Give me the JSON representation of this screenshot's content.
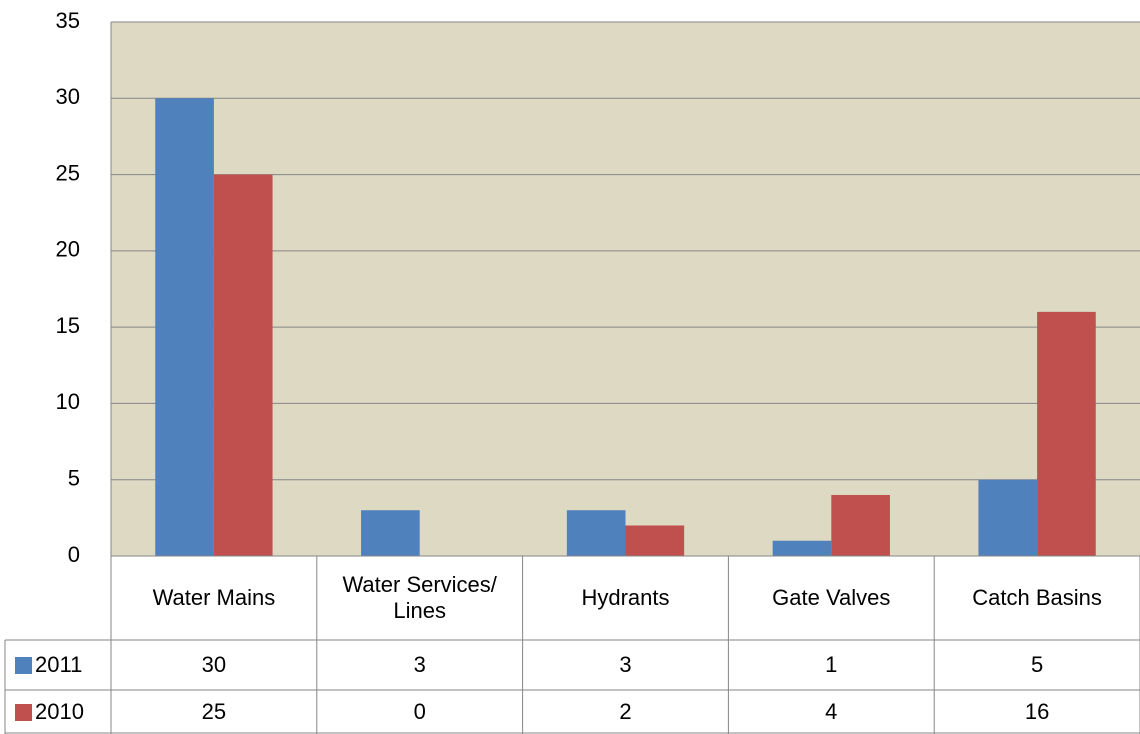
{
  "chart_data": {
    "type": "bar",
    "categories": [
      "Water Mains",
      "Water Services/ Lines",
      "Hydrants",
      "Gate Valves",
      "Catch Basins"
    ],
    "series": [
      {
        "name": "2011",
        "color": "#4f81bd",
        "values": [
          30,
          3,
          3,
          1,
          5
        ]
      },
      {
        "name": "2010",
        "color": "#c0504d",
        "values": [
          25,
          0,
          2,
          4,
          16
        ]
      }
    ],
    "ylim": [
      0,
      35
    ],
    "yticks": [
      0,
      5,
      10,
      15,
      20,
      25,
      30,
      35
    ],
    "grid": true
  }
}
